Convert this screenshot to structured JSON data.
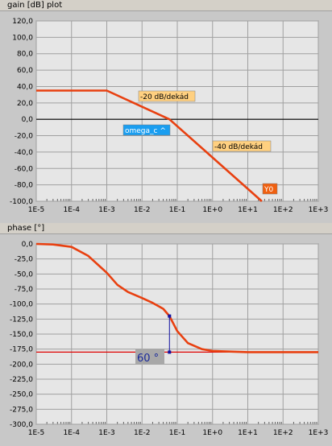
{
  "gain_panel": {
    "title": "gain [dB] plot",
    "annotations": {
      "slope1": "-20 dB/dekád",
      "slope2": "-40 dB/dekád",
      "omega_c": "omega_c ^",
      "y0": "Y0"
    },
    "colors": {
      "curve": "#e84010",
      "label_bg": "#ffd080",
      "omega_bg": "#1a9ef0",
      "y0_bg": "#f06010"
    }
  },
  "phase_panel": {
    "title": "phase [°]",
    "annotations": {
      "margin": "60 °"
    },
    "colors": {
      "curve": "#e84010",
      "ref_line": "#e00000",
      "marker": "#1010a0",
      "margin_bg": "#a8a8a8"
    }
  },
  "chart_data": [
    {
      "type": "line",
      "title": "gain [dB] plot",
      "xscale": "log",
      "xlim": [
        1e-05,
        1000
      ],
      "ylim": [
        -100,
        120
      ],
      "grid": true,
      "xticks": [
        "1E-5",
        "1E-4",
        "1E-3",
        "1E-2",
        "1E-1",
        "1E+0",
        "1E+1",
        "1E+2",
        "1E+3"
      ],
      "yticks": [
        "120,0",
        "100,0",
        "80,0",
        "60,0",
        "40,0",
        "20,0",
        "0,0",
        "-20,0",
        "-40,0",
        "-60,0",
        "-80,0",
        "-100,0"
      ],
      "series": [
        {
          "x": [
            1e-05,
            0.001,
            0.06,
            25
          ],
          "y": [
            35,
            35,
            0,
            -100
          ]
        }
      ],
      "reference": {
        "y": 0
      }
    },
    {
      "type": "line",
      "title": "phase [°]",
      "xscale": "log",
      "xlim": [
        1e-05,
        1000
      ],
      "ylim": [
        -300,
        0
      ],
      "grid": true,
      "xticks": [
        "1E-5",
        "1E-4",
        "1E-3",
        "1E-2",
        "1E-1",
        "1E+0",
        "1E+1",
        "1E+2",
        "1E+3"
      ],
      "yticks": [
        "0,0",
        "-25,0",
        "-50,0",
        "-75,0",
        "-100,0",
        "-125,0",
        "-150,0",
        "-175,0",
        "-200,0",
        "-225,0",
        "-250,0",
        "-275,0",
        "-300,0"
      ],
      "series": [
        {
          "x": [
            1e-05,
            3e-05,
            0.0001,
            0.0003,
            0.001,
            0.002,
            0.004,
            0.01,
            0.02,
            0.04,
            0.06,
            0.1,
            0.2,
            0.5,
            1,
            3,
            10,
            100,
            1000
          ],
          "y": [
            0,
            -1,
            -5,
            -20,
            -48,
            -68,
            -80,
            -90,
            -98,
            -108,
            -120,
            -145,
            -165,
            -175,
            -178,
            -179,
            -180,
            -180,
            -180
          ]
        }
      ],
      "reference": {
        "y": -180
      },
      "marker": {
        "x": 0.06,
        "y_from": -180,
        "y_to": -120
      }
    }
  ]
}
